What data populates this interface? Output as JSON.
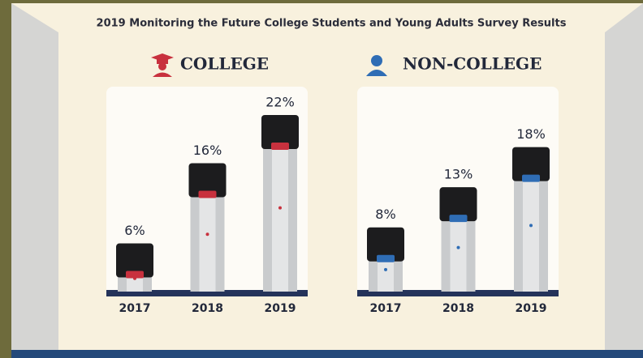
{
  "title": "2019 Monitoring the Future College Students and Young Adults Survey Results",
  "chart_data": [
    {
      "type": "bar",
      "title": "COLLEGE",
      "categories": [
        "2017",
        "2018",
        "2019"
      ],
      "values": [
        6,
        16,
        22
      ],
      "value_labels": [
        "6%",
        "16%",
        "22%"
      ],
      "color": "#c8313e",
      "ylim": [
        0,
        22
      ]
    },
    {
      "type": "bar",
      "title": "NON-COLLEGE",
      "categories": [
        "2017",
        "2018",
        "2019"
      ],
      "values": [
        8,
        13,
        18
      ],
      "value_labels": [
        "8%",
        "13%",
        "18%"
      ],
      "color": "#2f6db5",
      "ylim": [
        0,
        22
      ]
    }
  ]
}
